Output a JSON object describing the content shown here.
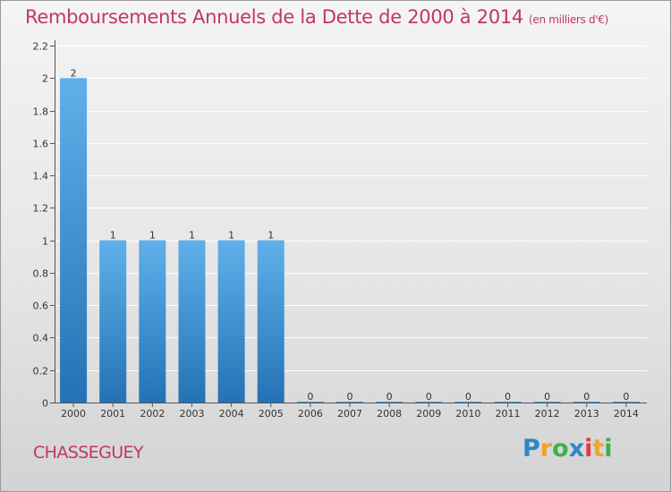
{
  "title": "Remboursements Annuels de la Dette de 2000 à 2014",
  "subtitle": "(en milliers d'€)",
  "town": "CHASSEGUEY",
  "logo": {
    "letters": [
      "P",
      "r",
      "o",
      "x",
      "i",
      "t",
      "i"
    ],
    "colors": [
      "#2e86c8",
      "#f0a22a",
      "#3db04a",
      "#2e86c8",
      "#e33a3a",
      "#f0a22a",
      "#3db04a"
    ]
  },
  "colors": {
    "bar_top": "#5fb0ea",
    "bar_bottom": "#2472b5",
    "axis": "#555555",
    "grid": "#ffffff",
    "title": "#c2356b"
  },
  "chart_data": {
    "type": "bar",
    "categories": [
      "2000",
      "2001",
      "2002",
      "2003",
      "2004",
      "2005",
      "2006",
      "2007",
      "2008",
      "2009",
      "2010",
      "2011",
      "2012",
      "2013",
      "2014"
    ],
    "values": [
      2,
      1,
      1,
      1,
      1,
      1,
      0,
      0,
      0,
      0,
      0,
      0,
      0,
      0,
      0
    ],
    "data_labels": [
      "2",
      "1",
      "1",
      "1",
      "1",
      "1",
      "0",
      "0",
      "0",
      "0",
      "0",
      "0",
      "0",
      "0",
      "0"
    ],
    "ylim": [
      0,
      2.2
    ],
    "yticks": [
      0,
      0.2,
      0.4,
      0.6,
      0.8,
      1,
      1.2,
      1.4,
      1.6,
      1.8,
      2,
      2.2
    ],
    "ytick_labels": [
      "0",
      "0.2",
      "0.4",
      "0.6",
      "0.8",
      "1",
      "1.2",
      "1.4",
      "1.6",
      "1.8",
      "2",
      "2.2"
    ],
    "xlabel": "",
    "ylabel": "",
    "grid": true,
    "legend": "none"
  }
}
